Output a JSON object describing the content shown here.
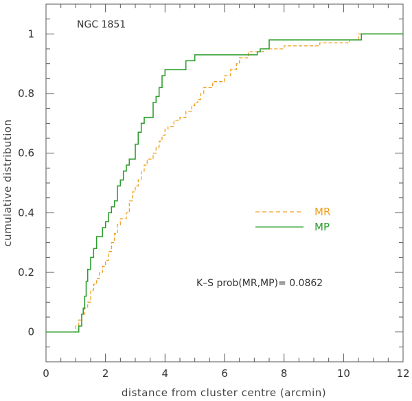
{
  "chart_data": {
    "type": "line",
    "title": "NGC 1851",
    "xlabel": "distance from cluster centre (arcmin)",
    "ylabel": "cumulative distribution",
    "xlim": [
      0,
      12
    ],
    "ylim": [
      -0.1,
      1.1
    ],
    "xticks": [
      "0",
      "2",
      "4",
      "6",
      "8",
      "10",
      "12"
    ],
    "yticks": [
      "0",
      "0.2",
      "0.4",
      "0.6",
      "0.8",
      "1"
    ],
    "grid": false,
    "legend_placement": "middle-right",
    "annotation": "K–S prob(MR,MP)=  0.0862",
    "series": [
      {
        "name": "MR",
        "style": "dashed",
        "color": "#f0a020",
        "x": [
          0,
          0.95,
          1.0,
          1.1,
          1.2,
          1.3,
          1.4,
          1.5,
          1.6,
          1.7,
          1.8,
          1.9,
          2.0,
          2.1,
          2.2,
          2.3,
          2.4,
          2.5,
          2.7,
          2.8,
          2.9,
          3.0,
          3.1,
          3.2,
          3.3,
          3.4,
          3.6,
          3.7,
          3.8,
          3.9,
          4.0,
          4.1,
          4.3,
          4.5,
          4.7,
          4.9,
          5.0,
          5.1,
          5.2,
          5.3,
          5.6,
          6.0,
          6.2,
          6.4,
          6.5,
          6.8,
          7.3,
          8.0,
          9.2,
          10.2,
          10.5,
          12
        ],
        "y": [
          0,
          0,
          0.02,
          0.04,
          0.06,
          0.08,
          0.1,
          0.14,
          0.16,
          0.18,
          0.2,
          0.22,
          0.24,
          0.27,
          0.3,
          0.33,
          0.36,
          0.38,
          0.4,
          0.44,
          0.47,
          0.49,
          0.51,
          0.54,
          0.56,
          0.58,
          0.6,
          0.62,
          0.64,
          0.66,
          0.68,
          0.69,
          0.71,
          0.72,
          0.74,
          0.76,
          0.77,
          0.78,
          0.8,
          0.82,
          0.84,
          0.86,
          0.88,
          0.9,
          0.92,
          0.94,
          0.95,
          0.96,
          0.97,
          0.98,
          1.0,
          1.0
        ]
      },
      {
        "name": "MP",
        "style": "solid",
        "color": "#2e9e2e",
        "x": [
          0,
          1.05,
          1.1,
          1.2,
          1.25,
          1.3,
          1.35,
          1.4,
          1.5,
          1.6,
          1.7,
          1.9,
          2.0,
          2.1,
          2.2,
          2.3,
          2.4,
          2.5,
          2.6,
          2.7,
          2.8,
          3.0,
          3.1,
          3.2,
          3.3,
          3.6,
          3.7,
          3.8,
          3.9,
          4.0,
          4.7,
          5.0,
          7.1,
          7.2,
          7.5,
          10.6,
          12
        ],
        "y": [
          0,
          0,
          0.02,
          0.06,
          0.08,
          0.12,
          0.17,
          0.21,
          0.25,
          0.28,
          0.32,
          0.35,
          0.37,
          0.4,
          0.42,
          0.44,
          0.49,
          0.51,
          0.54,
          0.56,
          0.58,
          0.63,
          0.67,
          0.7,
          0.72,
          0.77,
          0.79,
          0.82,
          0.86,
          0.88,
          0.91,
          0.93,
          0.94,
          0.95,
          0.98,
          1.0,
          1.0
        ]
      }
    ]
  }
}
